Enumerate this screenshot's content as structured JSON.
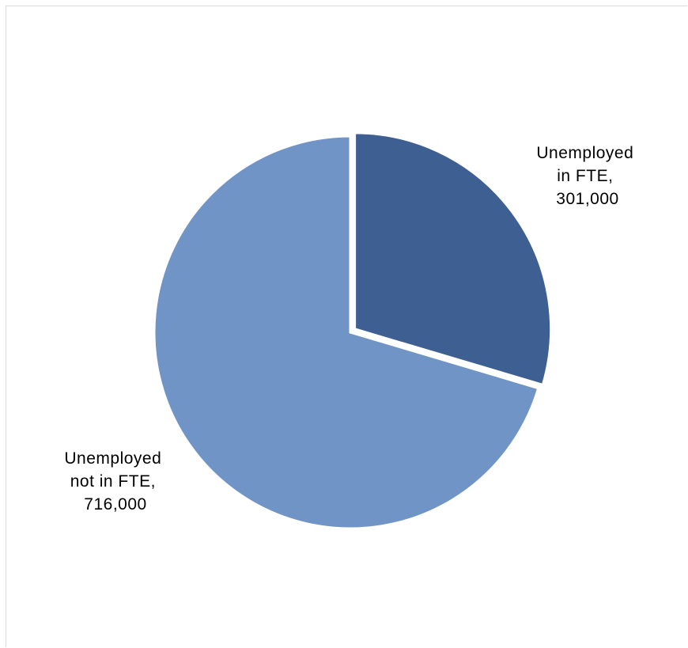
{
  "chart_data": {
    "type": "pie",
    "title": "",
    "slices": [
      {
        "label_lines": [
          "Unemployed",
          "in FTE,",
          "301,000"
        ],
        "value": 301000,
        "color": "#3d5f91"
      },
      {
        "label_lines": [
          "Unemployed",
          "not in FTE,",
          "716,000"
        ],
        "value": 716000,
        "color": "#7094c6"
      }
    ],
    "start_angle_deg": 0,
    "exploded_slice_index": 0,
    "legend": "none",
    "background_color": "#ffffff",
    "separator_color": "#ffffff"
  }
}
